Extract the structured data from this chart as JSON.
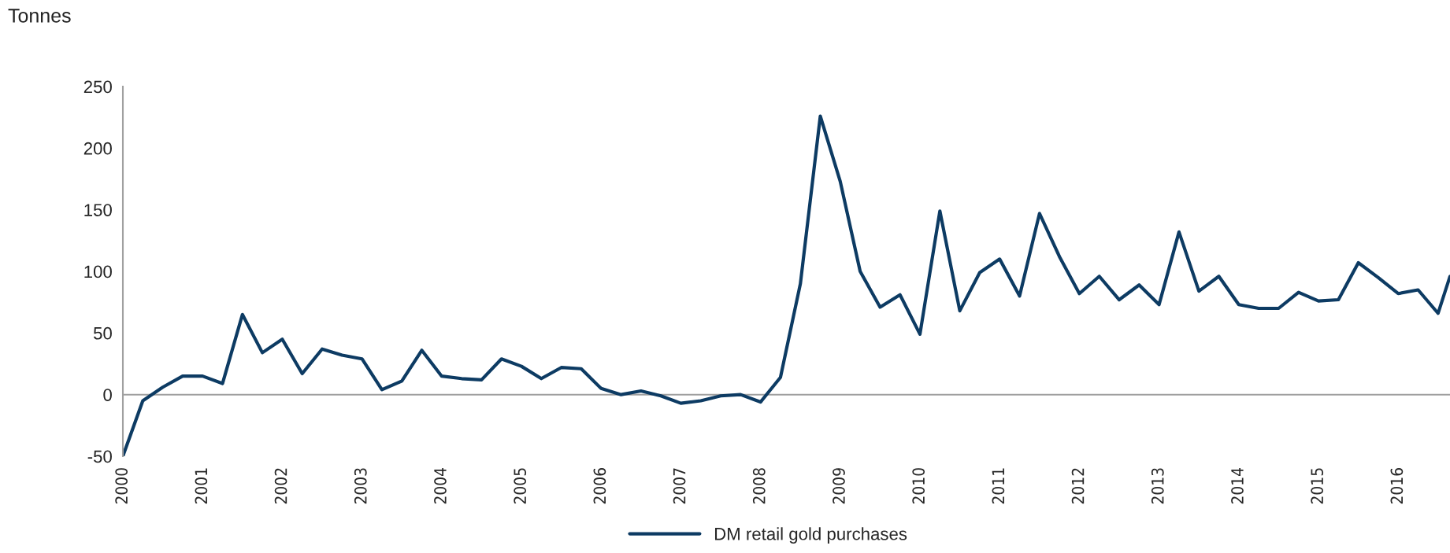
{
  "chart_data": {
    "type": "line",
    "ylabel": "Tonnes",
    "x": [
      2000.0,
      2000.25,
      2000.5,
      2000.75,
      2001.0,
      2001.25,
      2001.5,
      2001.75,
      2002.0,
      2002.25,
      2002.5,
      2002.75,
      2003.0,
      2003.25,
      2003.5,
      2003.75,
      2004.0,
      2004.25,
      2004.5,
      2004.75,
      2005.0,
      2005.25,
      2005.5,
      2005.75,
      2006.0,
      2006.25,
      2006.5,
      2006.75,
      2007.0,
      2007.25,
      2007.5,
      2007.75,
      2008.0,
      2008.25,
      2008.5,
      2008.75,
      2009.0,
      2009.25,
      2009.5,
      2009.75,
      2010.0,
      2010.25,
      2010.5,
      2010.75,
      2011.0,
      2011.25,
      2011.5,
      2011.75,
      2012.0,
      2012.25,
      2012.5,
      2012.75,
      2013.0,
      2013.25,
      2013.5,
      2013.75,
      2014.0,
      2014.25,
      2014.5,
      2014.75,
      2015.0,
      2015.25,
      2015.5,
      2015.75,
      2016.0,
      2016.25,
      2016.5,
      2016.65
    ],
    "series": [
      {
        "name": "DM retail gold purchases",
        "color": "#0d3b63",
        "values": [
          -50,
          -5,
          6,
          15,
          15,
          9,
          65,
          34,
          45,
          17,
          37,
          32,
          29,
          4,
          11,
          36,
          15,
          13,
          12,
          29,
          23,
          13,
          22,
          21,
          5,
          0,
          3,
          -1,
          -7,
          -5,
          -1,
          0,
          -6,
          14,
          90,
          226,
          173,
          100,
          71,
          81,
          49,
          149,
          68,
          99,
          110,
          80,
          147,
          112,
          82,
          96,
          77,
          89,
          73,
          132,
          84,
          96,
          73,
          70,
          70,
          83,
          76,
          77,
          107,
          95,
          82,
          85,
          66,
          96
        ]
      }
    ],
    "xlim": [
      2000,
      2016.65
    ],
    "xticks": [
      2000,
      2001,
      2002,
      2003,
      2004,
      2005,
      2006,
      2007,
      2008,
      2009,
      2010,
      2011,
      2012,
      2013,
      2014,
      2015,
      2016
    ],
    "ylim": [
      -50,
      250
    ],
    "yticks": [
      -50,
      0,
      50,
      100,
      150,
      200,
      250
    ],
    "ref_lines": [
      {
        "axis": "y",
        "value": 0,
        "color": "#a0a0a0"
      }
    ],
    "grid": false,
    "legend": "bottom",
    "marker": "none",
    "line_style": "solid"
  }
}
